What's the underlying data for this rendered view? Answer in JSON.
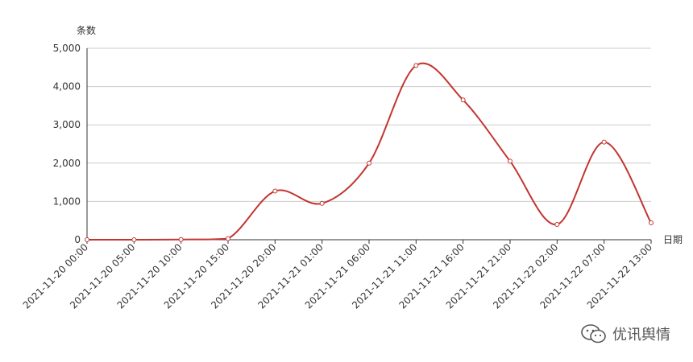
{
  "chart_data": {
    "type": "line",
    "ylabel": "条数",
    "xlabel": "日期",
    "ylim": [
      0,
      5000
    ],
    "y_ticks": [
      0,
      1000,
      2000,
      3000,
      4000,
      5000
    ],
    "y_tick_labels": [
      "0",
      "1,000",
      "2,000",
      "3,000",
      "4,000",
      "5,000"
    ],
    "categories": [
      "2021-11-20 00:00",
      "2021-11-20 05:00",
      "2021-11-20 10:00",
      "2021-11-20 15:00",
      "2021-11-20 20:00",
      "2021-11-21 01:00",
      "2021-11-21 06:00",
      "2021-11-21 11:00",
      "2021-11-21 16:00",
      "2021-11-21 21:00",
      "2021-11-22 02:00",
      "2021-11-22 07:00",
      "2021-11-22 13:00"
    ],
    "series": [
      {
        "values": [
          0,
          0,
          5,
          30,
          1270,
          950,
          2000,
          4550,
          3650,
          2050,
          400,
          2550,
          440
        ]
      }
    ],
    "grid": true,
    "colors": {
      "line": "#c23531",
      "grid": "#cccccc",
      "axis": "#333333"
    }
  },
  "watermark": {
    "text": "优讯舆情",
    "icon": "wechat-icon"
  }
}
